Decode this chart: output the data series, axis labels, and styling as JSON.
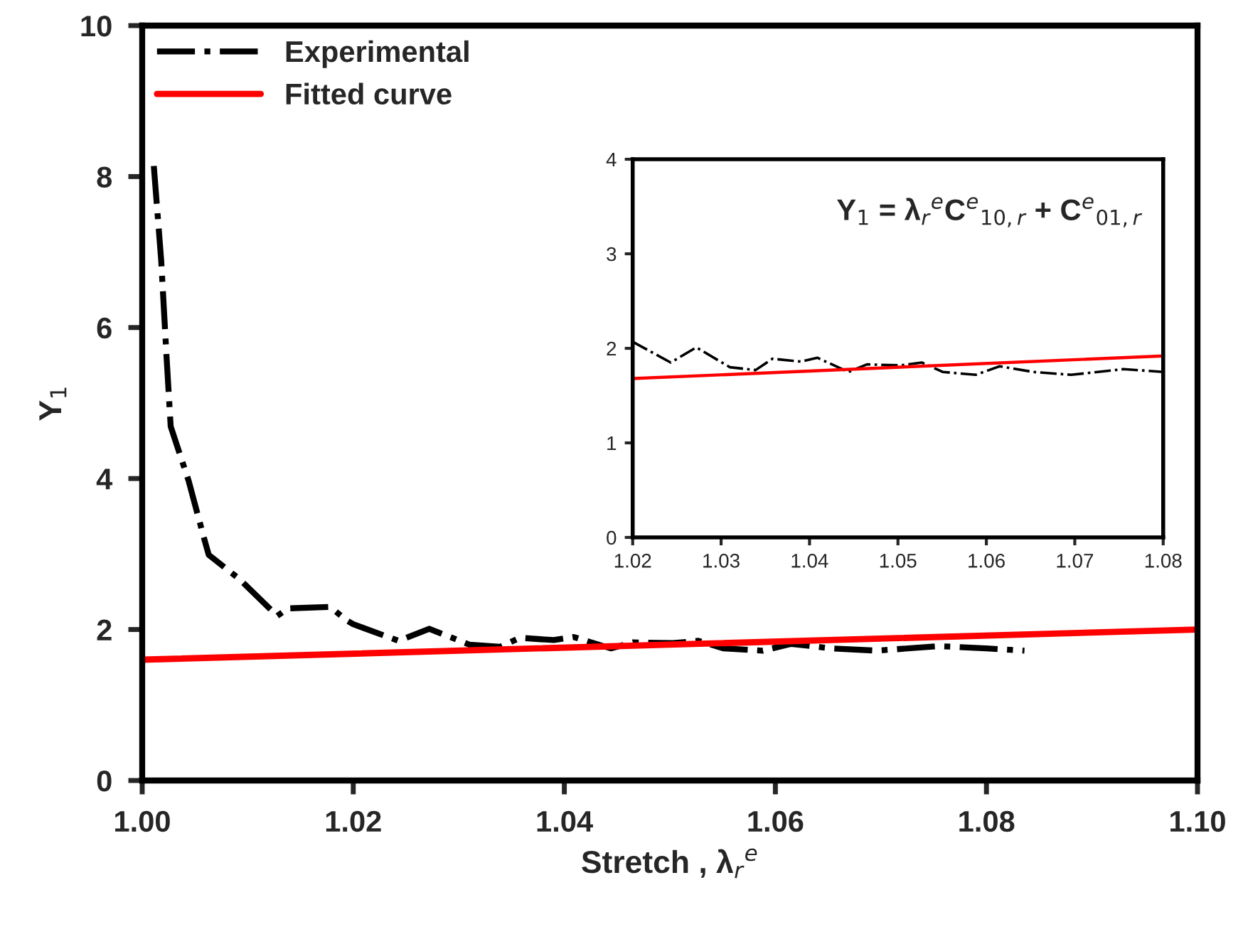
{
  "chart_data": [
    {
      "type": "line",
      "xlabel": "Stretch , λ$_{r}$$^{e}$",
      "ylabel": "Y$_{1}$",
      "xlim": [
        1.0,
        1.1
      ],
      "xticks": [
        {
          "value": 1.0,
          "label": "1.00"
        },
        {
          "value": 1.02,
          "label": "1.02"
        },
        {
          "value": 1.04,
          "label": "1.04"
        },
        {
          "value": 1.06,
          "label": "1.06"
        },
        {
          "value": 1.08,
          "label": "1.08"
        },
        {
          "value": 1.1,
          "label": "1.10"
        }
      ],
      "ylim": [
        0,
        10
      ],
      "yticks": [
        0,
        2,
        4,
        6,
        8,
        10
      ],
      "grid": false,
      "legend": "top left",
      "series": [
        {
          "name": "Experimental",
          "color": "#000000",
          "line_style": "dashdot",
          "x": [
            1.0011,
            1.0018,
            1.0023,
            1.0027,
            1.0044,
            1.0058,
            1.0063,
            1.0092,
            1.0128,
            1.0138,
            1.0178,
            1.0195,
            1.02,
            1.0243,
            1.0272,
            1.031,
            1.0339,
            1.0358,
            1.039,
            1.0409,
            1.0444,
            1.0465,
            1.0503,
            1.0527,
            1.0551,
            1.0588,
            1.0615,
            1.0653,
            1.0696,
            1.0755,
            1.08,
            1.0836
          ],
          "values": [
            8.14,
            6.89,
            5.63,
            4.69,
            3.97,
            3.24,
            2.99,
            2.67,
            2.18,
            2.28,
            2.3,
            2.11,
            2.07,
            1.85,
            2.01,
            1.8,
            1.77,
            1.89,
            1.86,
            1.9,
            1.75,
            1.83,
            1.82,
            1.85,
            1.75,
            1.72,
            1.81,
            1.75,
            1.72,
            1.78,
            1.75,
            1.72
          ]
        },
        {
          "name": "Fitted curve",
          "color": "#ff0000",
          "line_style": "solid",
          "x": [
            1.0,
            1.1
          ],
          "values": [
            1.6,
            2.0
          ]
        }
      ]
    },
    {
      "type": "line",
      "annotations": [
        "Y$_{1}$ = λ$_{r}$$^{e}$C$^{e}$$_{10,r}$ + C$^{e}$$_{01,r}$"
      ],
      "xlim": [
        1.02,
        1.08
      ],
      "xticks": [
        {
          "value": 1.02,
          "label": "1.02"
        },
        {
          "value": 1.03,
          "label": "1.03"
        },
        {
          "value": 1.04,
          "label": "1.04"
        },
        {
          "value": 1.05,
          "label": "1.05"
        },
        {
          "value": 1.06,
          "label": "1.06"
        },
        {
          "value": 1.07,
          "label": "1.07"
        },
        {
          "value": 1.08,
          "label": "1.08"
        }
      ],
      "ylim": [
        0,
        4
      ],
      "yticks": [
        0,
        1,
        2,
        3,
        4
      ],
      "grid": false,
      "series": [
        {
          "color": "#000000",
          "line_style": "dashdot",
          "x": [
            1.02,
            1.0243,
            1.0272,
            1.031,
            1.0339,
            1.0358,
            1.039,
            1.0409,
            1.0444,
            1.0465,
            1.0503,
            1.0527,
            1.0551,
            1.0588,
            1.0615,
            1.0653,
            1.0696,
            1.0755,
            1.08
          ],
          "values": [
            2.07,
            1.85,
            2.01,
            1.8,
            1.77,
            1.89,
            1.86,
            1.9,
            1.75,
            1.83,
            1.82,
            1.85,
            1.75,
            1.72,
            1.81,
            1.75,
            1.72,
            1.78,
            1.75
          ]
        },
        {
          "color": "#ff0000",
          "line_style": "solid",
          "x": [
            1.02,
            1.08
          ],
          "values": [
            1.68,
            1.92
          ]
        }
      ]
    }
  ]
}
